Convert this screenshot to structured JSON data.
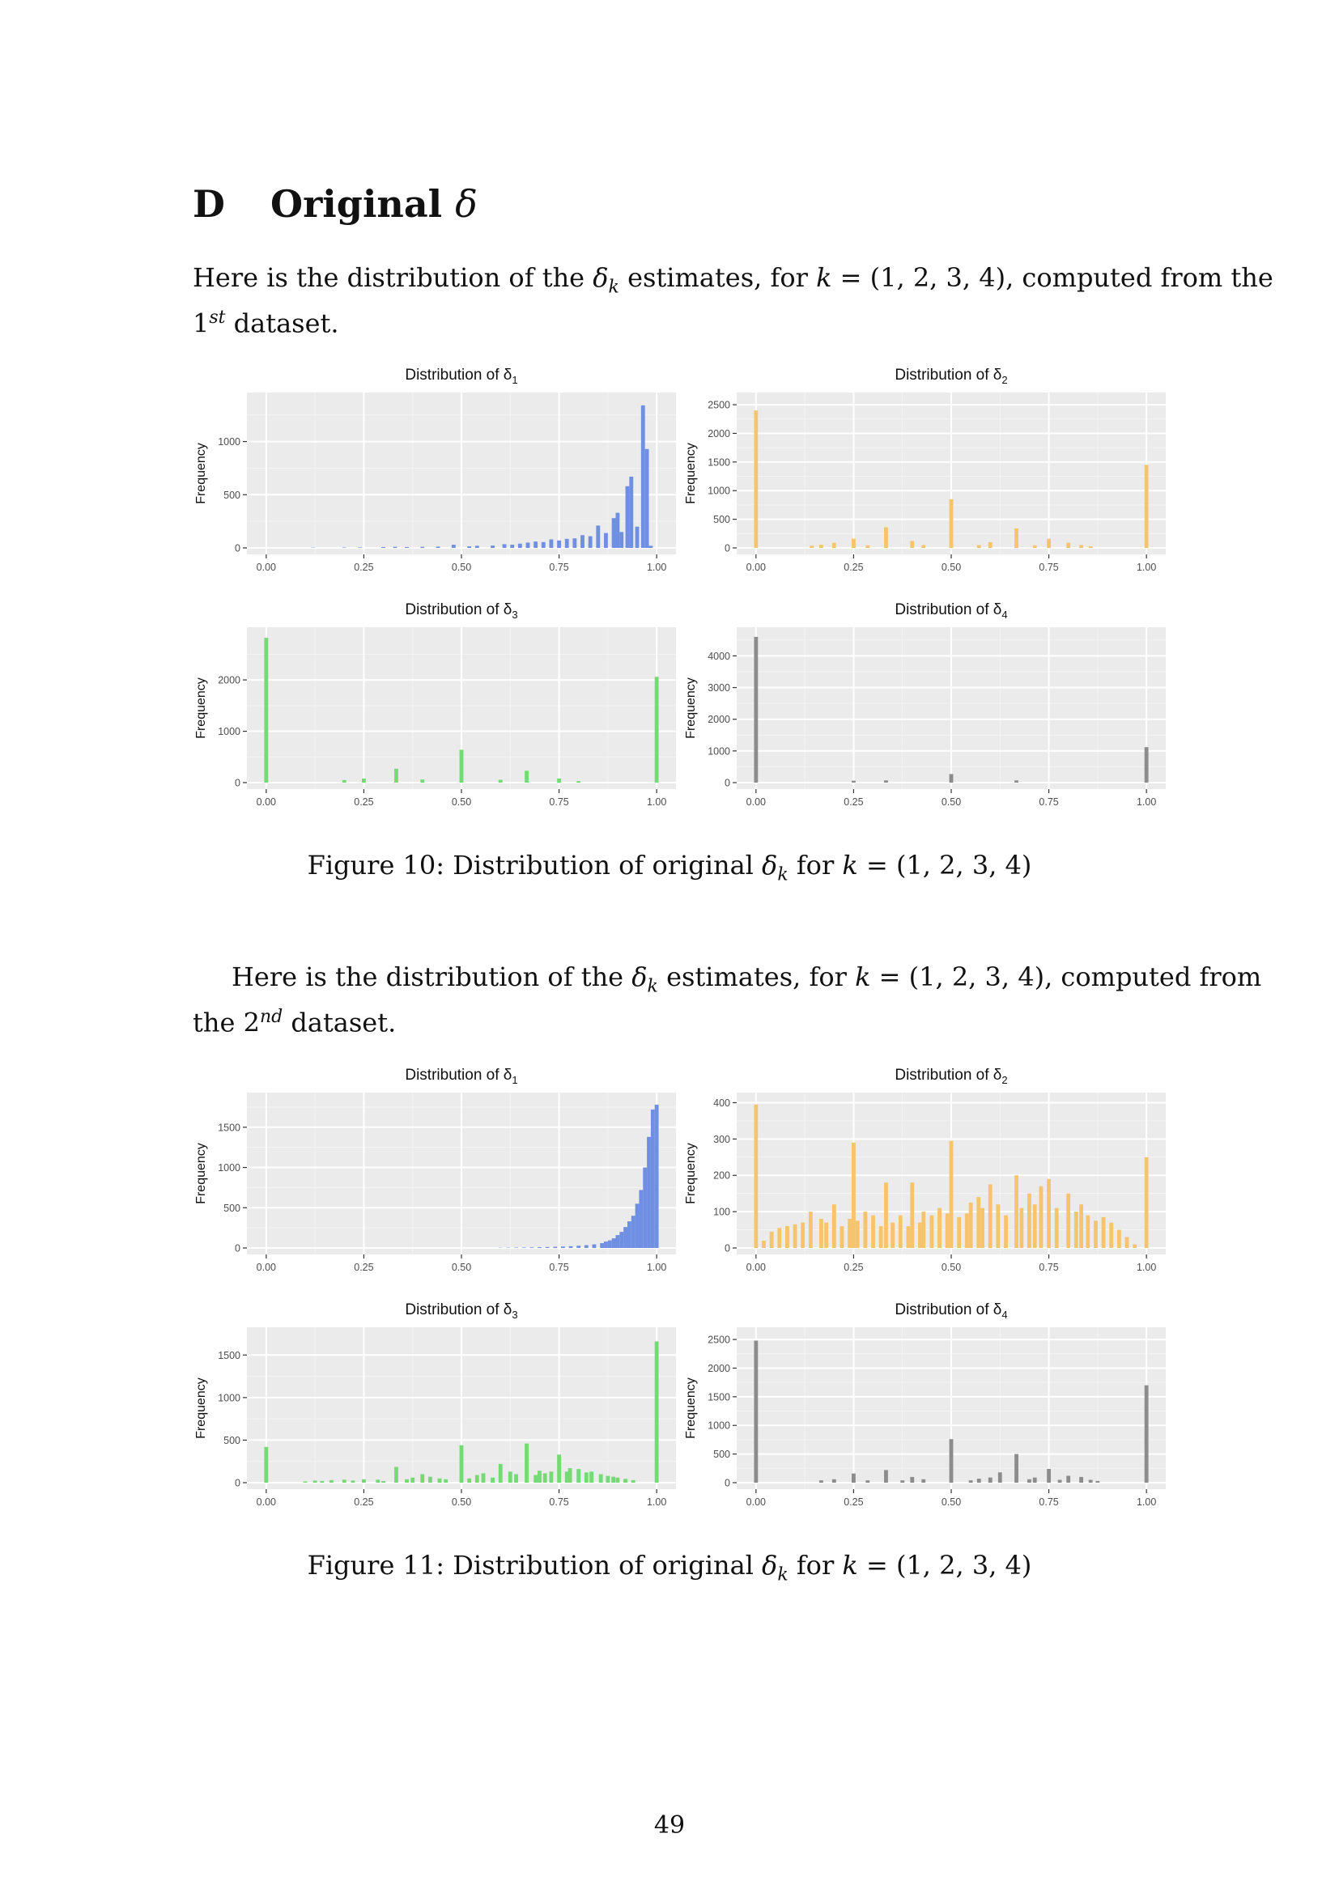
{
  "section": {
    "number": "D",
    "title": "Original",
    "symbol": "δ"
  },
  "paragraph1": {
    "line1": {
      "a": "Here is the distribution of the ",
      "b": "δ",
      "c": "k",
      "d": " estimates, for ",
      "e": "k",
      "f": " = (1, 2, 3, 4), computed from the"
    },
    "line2": {
      "a": "1",
      "b": "st",
      "c": " dataset."
    }
  },
  "paragraph2": {
    "line1": {
      "a": "Here is the distribution of the ",
      "b": "δ",
      "c": "k",
      "d": " estimates, for ",
      "e": "k",
      "f": " = (1, 2, 3, 4), computed from"
    },
    "line2": {
      "a": "the 2",
      "b": "nd",
      "c": " dataset."
    }
  },
  "caption1": {
    "a": "Figure 10: Distribution of original ",
    "b": "δ",
    "c": "k",
    "d": " for ",
    "e": "k",
    "f": " = (1, 2, 3, 4)"
  },
  "caption2": {
    "a": "Figure 11: Distribution of original ",
    "b": "δ",
    "c": "k",
    "d": " for ",
    "e": "k",
    "f": " = (1, 2, 3, 4)"
  },
  "page_number": "49",
  "colors": {
    "d1": "#6f8fe3",
    "d2": "#f6c46c",
    "d3": "#74da74",
    "d4": "#8c8c8c",
    "panel": "#ebebeb",
    "grid": "#ffffff"
  },
  "chart_data": [
    {
      "type": "bar",
      "figure": "Figure 10",
      "title": "Distribution of δ1",
      "title_base": "Distribution of δ",
      "title_sub": "1",
      "ylabel": "Frequency",
      "xlabel": "",
      "xlim": [
        0,
        1
      ],
      "ylim": [
        0,
        1400
      ],
      "xticks": [
        0,
        0.25,
        0.5,
        0.75,
        1
      ],
      "xtick_labels": [
        "0.00",
        "0.25",
        "0.50",
        "0.75",
        "1.00"
      ],
      "yticks": [
        0,
        500,
        1000
      ],
      "grid": true,
      "color": "#6f8fe3",
      "bins": [
        [
          0.12,
          3
        ],
        [
          0.2,
          4
        ],
        [
          0.24,
          5
        ],
        [
          0.3,
          8
        ],
        [
          0.33,
          10
        ],
        [
          0.36,
          8
        ],
        [
          0.4,
          10
        ],
        [
          0.44,
          12
        ],
        [
          0.48,
          30
        ],
        [
          0.52,
          15
        ],
        [
          0.54,
          20
        ],
        [
          0.58,
          22
        ],
        [
          0.61,
          35
        ],
        [
          0.63,
          30
        ],
        [
          0.65,
          40
        ],
        [
          0.67,
          50
        ],
        [
          0.69,
          60
        ],
        [
          0.71,
          55
        ],
        [
          0.73,
          80
        ],
        [
          0.75,
          70
        ],
        [
          0.77,
          85
        ],
        [
          0.79,
          90
        ],
        [
          0.81,
          120
        ],
        [
          0.83,
          110
        ],
        [
          0.85,
          210
        ],
        [
          0.87,
          140
        ],
        [
          0.89,
          280
        ],
        [
          0.9,
          330
        ],
        [
          0.91,
          150
        ],
        [
          0.925,
          580
        ],
        [
          0.935,
          670
        ],
        [
          0.95,
          200
        ],
        [
          0.965,
          1340
        ],
        [
          0.975,
          930
        ],
        [
          0.985,
          20
        ]
      ]
    },
    {
      "type": "bar",
      "figure": "Figure 10",
      "title": "Distribution of δ2",
      "title_base": "Distribution of δ",
      "title_sub": "2",
      "ylabel": "Frequency",
      "xlabel": "",
      "xlim": [
        0,
        1
      ],
      "ylim": [
        0,
        2600
      ],
      "xticks": [
        0,
        0.25,
        0.5,
        0.75,
        1
      ],
      "xtick_labels": [
        "0.00",
        "0.25",
        "0.50",
        "0.75",
        "1.00"
      ],
      "yticks": [
        0,
        500,
        1000,
        1500,
        2000,
        2500
      ],
      "grid": true,
      "color": "#f6c46c",
      "bins": [
        [
          0,
          2400
        ],
        [
          0.143,
          40
        ],
        [
          0.167,
          55
        ],
        [
          0.2,
          90
        ],
        [
          0.25,
          160
        ],
        [
          0.286,
          45
        ],
        [
          0.333,
          360
        ],
        [
          0.4,
          120
        ],
        [
          0.429,
          50
        ],
        [
          0.5,
          850
        ],
        [
          0.571,
          50
        ],
        [
          0.6,
          100
        ],
        [
          0.667,
          340
        ],
        [
          0.714,
          45
        ],
        [
          0.75,
          160
        ],
        [
          0.8,
          90
        ],
        [
          0.833,
          50
        ],
        [
          0.857,
          30
        ],
        [
          1.0,
          1450
        ]
      ]
    },
    {
      "type": "bar",
      "figure": "Figure 10",
      "title": "Distribution of δ3",
      "title_base": "Distribution of δ",
      "title_sub": "3",
      "ylabel": "Frequency",
      "xlabel": "",
      "xlim": [
        0,
        1
      ],
      "ylim": [
        0,
        2900
      ],
      "xticks": [
        0,
        0.25,
        0.5,
        0.75,
        1
      ],
      "xtick_labels": [
        "0.00",
        "0.25",
        "0.50",
        "0.75",
        "1.00"
      ],
      "yticks": [
        0,
        1000,
        2000
      ],
      "grid": true,
      "color": "#74da74",
      "bins": [
        [
          0,
          2820
        ],
        [
          0.2,
          50
        ],
        [
          0.25,
          80
        ],
        [
          0.333,
          270
        ],
        [
          0.4,
          60
        ],
        [
          0.5,
          640
        ],
        [
          0.6,
          55
        ],
        [
          0.667,
          230
        ],
        [
          0.75,
          80
        ],
        [
          0.8,
          30
        ],
        [
          1.0,
          2060
        ]
      ]
    },
    {
      "type": "bar",
      "figure": "Figure 10",
      "title": "Distribution of δ4",
      "title_base": "Distribution of δ",
      "title_sub": "4",
      "ylabel": "Frequency",
      "xlabel": "",
      "xlim": [
        0,
        1
      ],
      "ylim": [
        0,
        4700
      ],
      "xticks": [
        0,
        0.25,
        0.5,
        0.75,
        1
      ],
      "xtick_labels": [
        "0.00",
        "0.25",
        "0.50",
        "0.75",
        "1.00"
      ],
      "yticks": [
        0,
        1000,
        2000,
        3000,
        4000
      ],
      "grid": true,
      "color": "#8c8c8c",
      "bins": [
        [
          0,
          4600
        ],
        [
          0.25,
          60
        ],
        [
          0.333,
          70
        ],
        [
          0.5,
          270
        ],
        [
          0.667,
          70
        ],
        [
          1.0,
          1120
        ]
      ]
    },
    {
      "type": "bar",
      "figure": "Figure 11",
      "title": "Distribution of δ1",
      "title_base": "Distribution of δ",
      "title_sub": "1",
      "ylabel": "Frequency",
      "xlabel": "",
      "xlim": [
        0,
        1
      ],
      "ylim": [
        0,
        1850
      ],
      "xticks": [
        0,
        0.25,
        0.5,
        0.75,
        1
      ],
      "xtick_labels": [
        "0.00",
        "0.25",
        "0.50",
        "0.75",
        "1.00"
      ],
      "yticks": [
        0,
        500,
        1000,
        1500
      ],
      "grid": true,
      "color": "#6f8fe3",
      "bins": [
        [
          0.6,
          3
        ],
        [
          0.62,
          4
        ],
        [
          0.64,
          5
        ],
        [
          0.66,
          6
        ],
        [
          0.68,
          8
        ],
        [
          0.7,
          10
        ],
        [
          0.72,
          12
        ],
        [
          0.74,
          15
        ],
        [
          0.76,
          18
        ],
        [
          0.78,
          22
        ],
        [
          0.8,
          28
        ],
        [
          0.82,
          35
        ],
        [
          0.84,
          45
        ],
        [
          0.86,
          60
        ],
        [
          0.87,
          80
        ],
        [
          0.88,
          95
        ],
        [
          0.89,
          120
        ],
        [
          0.9,
          160
        ],
        [
          0.91,
          200
        ],
        [
          0.92,
          260
        ],
        [
          0.93,
          330
        ],
        [
          0.94,
          400
        ],
        [
          0.95,
          550
        ],
        [
          0.96,
          720
        ],
        [
          0.97,
          1000
        ],
        [
          0.98,
          1380
        ],
        [
          0.99,
          1720
        ],
        [
          1.0,
          1780
        ]
      ]
    },
    {
      "type": "bar",
      "figure": "Figure 11",
      "title": "Distribution of δ2",
      "title_base": "Distribution of δ",
      "title_sub": "2",
      "ylabel": "Frequency",
      "xlabel": "",
      "xlim": [
        0,
        1
      ],
      "ylim": [
        0,
        410
      ],
      "xticks": [
        0,
        0.25,
        0.5,
        0.75,
        1
      ],
      "xtick_labels": [
        "0.00",
        "0.25",
        "0.50",
        "0.75",
        "1.00"
      ],
      "yticks": [
        0,
        100,
        200,
        300,
        400
      ],
      "grid": true,
      "color": "#f6c46c",
      "bins": [
        [
          0,
          395
        ],
        [
          0.02,
          20
        ],
        [
          0.04,
          45
        ],
        [
          0.06,
          55
        ],
        [
          0.08,
          60
        ],
        [
          0.1,
          65
        ],
        [
          0.12,
          70
        ],
        [
          0.14,
          100
        ],
        [
          0.167,
          80
        ],
        [
          0.18,
          70
        ],
        [
          0.2,
          120
        ],
        [
          0.22,
          60
        ],
        [
          0.24,
          80
        ],
        [
          0.25,
          290
        ],
        [
          0.26,
          75
        ],
        [
          0.28,
          100
        ],
        [
          0.3,
          90
        ],
        [
          0.32,
          60
        ],
        [
          0.333,
          180
        ],
        [
          0.35,
          70
        ],
        [
          0.37,
          90
        ],
        [
          0.39,
          60
        ],
        [
          0.4,
          180
        ],
        [
          0.42,
          70
        ],
        [
          0.429,
          100
        ],
        [
          0.45,
          90
        ],
        [
          0.47,
          110
        ],
        [
          0.49,
          95
        ],
        [
          0.5,
          295
        ],
        [
          0.52,
          85
        ],
        [
          0.54,
          95
        ],
        [
          0.55,
          125
        ],
        [
          0.57,
          140
        ],
        [
          0.58,
          110
        ],
        [
          0.6,
          175
        ],
        [
          0.62,
          120
        ],
        [
          0.64,
          90
        ],
        [
          0.667,
          200
        ],
        [
          0.68,
          110
        ],
        [
          0.7,
          150
        ],
        [
          0.714,
          120
        ],
        [
          0.73,
          170
        ],
        [
          0.75,
          190
        ],
        [
          0.77,
          110
        ],
        [
          0.8,
          150
        ],
        [
          0.82,
          100
        ],
        [
          0.833,
          120
        ],
        [
          0.85,
          90
        ],
        [
          0.87,
          75
        ],
        [
          0.89,
          85
        ],
        [
          0.91,
          70
        ],
        [
          0.93,
          50
        ],
        [
          0.95,
          30
        ],
        [
          0.97,
          10
        ],
        [
          1.0,
          250
        ]
      ]
    },
    {
      "type": "bar",
      "figure": "Figure 11",
      "title": "Distribution of δ3",
      "title_base": "Distribution of δ",
      "title_sub": "3",
      "ylabel": "Frequency",
      "xlabel": "",
      "xlim": [
        0,
        1
      ],
      "ylim": [
        0,
        1750
      ],
      "xticks": [
        0,
        0.25,
        0.5,
        0.75,
        1
      ],
      "xtick_labels": [
        "0.00",
        "0.25",
        "0.50",
        "0.75",
        "1.00"
      ],
      "yticks": [
        0,
        500,
        1000,
        1500
      ],
      "grid": true,
      "color": "#74da74",
      "bins": [
        [
          0,
          420
        ],
        [
          0.1,
          15
        ],
        [
          0.125,
          25
        ],
        [
          0.143,
          20
        ],
        [
          0.167,
          30
        ],
        [
          0.2,
          35
        ],
        [
          0.222,
          25
        ],
        [
          0.25,
          40
        ],
        [
          0.286,
          35
        ],
        [
          0.3,
          20
        ],
        [
          0.333,
          185
        ],
        [
          0.36,
          40
        ],
        [
          0.375,
          60
        ],
        [
          0.4,
          100
        ],
        [
          0.42,
          70
        ],
        [
          0.444,
          50
        ],
        [
          0.46,
          40
        ],
        [
          0.5,
          440
        ],
        [
          0.52,
          50
        ],
        [
          0.54,
          90
        ],
        [
          0.556,
          110
        ],
        [
          0.58,
          60
        ],
        [
          0.6,
          220
        ],
        [
          0.625,
          130
        ],
        [
          0.64,
          100
        ],
        [
          0.667,
          460
        ],
        [
          0.69,
          90
        ],
        [
          0.7,
          140
        ],
        [
          0.714,
          110
        ],
        [
          0.73,
          130
        ],
        [
          0.75,
          330
        ],
        [
          0.77,
          130
        ],
        [
          0.778,
          170
        ],
        [
          0.8,
          160
        ],
        [
          0.82,
          120
        ],
        [
          0.833,
          130
        ],
        [
          0.857,
          100
        ],
        [
          0.875,
          80
        ],
        [
          0.889,
          70
        ],
        [
          0.9,
          60
        ],
        [
          0.92,
          45
        ],
        [
          0.94,
          30
        ],
        [
          1.0,
          1660
        ]
      ]
    },
    {
      "type": "bar",
      "figure": "Figure 11",
      "title": "Distribution of δ4",
      "title_base": "Distribution of δ",
      "title_sub": "4",
      "ylabel": "Frequency",
      "xlabel": "",
      "xlim": [
        0,
        1
      ],
      "ylim": [
        0,
        2600
      ],
      "xticks": [
        0,
        0.25,
        0.5,
        0.75,
        1
      ],
      "xtick_labels": [
        "0.00",
        "0.25",
        "0.50",
        "0.75",
        "1.00"
      ],
      "yticks": [
        0,
        500,
        1000,
        1500,
        2000,
        2500
      ],
      "grid": true,
      "color": "#8c8c8c",
      "bins": [
        [
          0,
          2480
        ],
        [
          0.167,
          40
        ],
        [
          0.2,
          60
        ],
        [
          0.25,
          160
        ],
        [
          0.286,
          40
        ],
        [
          0.333,
          220
        ],
        [
          0.375,
          40
        ],
        [
          0.4,
          100
        ],
        [
          0.429,
          60
        ],
        [
          0.5,
          760
        ],
        [
          0.55,
          40
        ],
        [
          0.571,
          70
        ],
        [
          0.6,
          90
        ],
        [
          0.625,
          180
        ],
        [
          0.667,
          500
        ],
        [
          0.7,
          60
        ],
        [
          0.714,
          90
        ],
        [
          0.75,
          240
        ],
        [
          0.778,
          50
        ],
        [
          0.8,
          120
        ],
        [
          0.833,
          100
        ],
        [
          0.857,
          50
        ],
        [
          0.875,
          30
        ],
        [
          1.0,
          1700
        ]
      ]
    }
  ]
}
